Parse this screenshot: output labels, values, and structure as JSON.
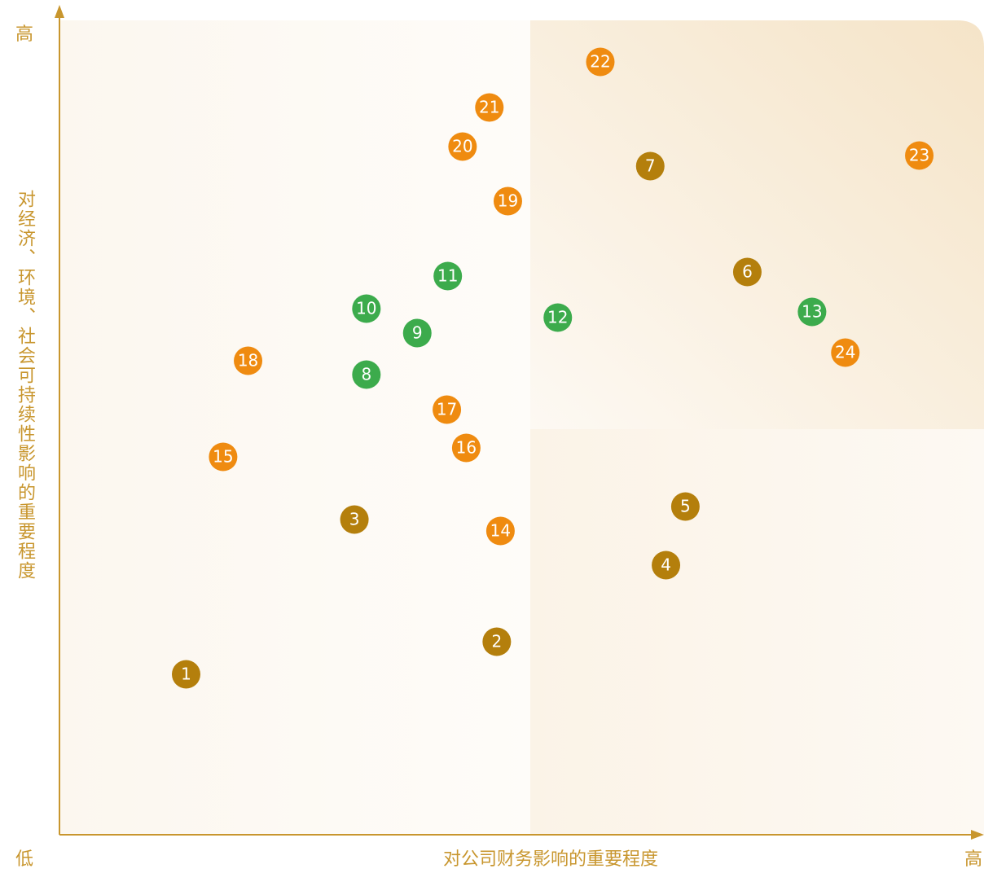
{
  "chart_data": {
    "type": "scatter",
    "x_label": "对公司财务影响的重要程度",
    "y_label": "对经济、环境、社会可持续性影响的重要程度",
    "x_low_label": "低",
    "x_high_label": "高",
    "y_high_label": "高",
    "xlim": [
      0,
      100
    ],
    "ylim": [
      0,
      100
    ],
    "series": [
      {
        "color": "#b47f0c",
        "labels": [
          "1",
          "2",
          "3",
          "4",
          "5",
          "6",
          "7"
        ],
        "x": [
          13.7,
          47.3,
          31.9,
          65.6,
          67.7,
          74.4,
          63.9
        ],
        "values": [
          19.7,
          23.7,
          38.7,
          33.1,
          40.3,
          69.1,
          82.1
        ]
      },
      {
        "color": "#3cab4c",
        "labels": [
          "8",
          "9",
          "10",
          "11",
          "12",
          "13"
        ],
        "x": [
          33.2,
          38.7,
          33.2,
          42.0,
          53.9,
          81.4
        ],
        "values": [
          56.5,
          61.6,
          64.6,
          68.6,
          63.5,
          64.2
        ]
      },
      {
        "color": "#ef8b10",
        "labels": [
          "14",
          "15",
          "16",
          "17",
          "18",
          "19",
          "20",
          "21",
          "22",
          "23",
          "24"
        ],
        "x": [
          47.7,
          17.7,
          44.0,
          41.9,
          20.4,
          48.5,
          43.6,
          46.5,
          58.5,
          93.0,
          85.0
        ],
        "values": [
          37.3,
          46.4,
          47.5,
          52.2,
          58.2,
          77.8,
          84.5,
          89.3,
          94.9,
          83.4,
          59.2
        ]
      }
    ]
  }
}
